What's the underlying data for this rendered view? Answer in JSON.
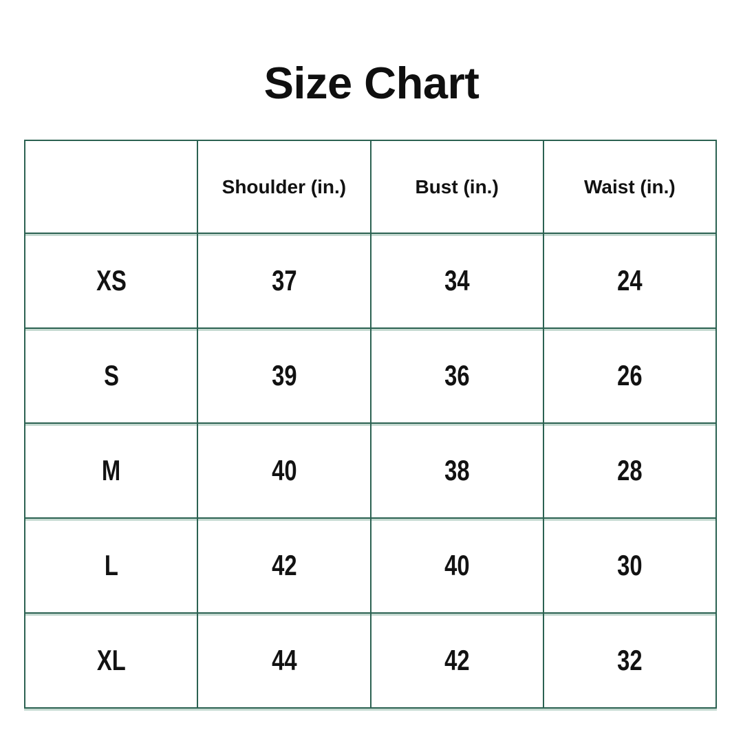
{
  "title": "Size Chart",
  "colors": {
    "background": "#ffffff",
    "text": "#121212",
    "table_border": "#2b6151",
    "table_border_shadow": "#c4d9d0"
  },
  "chart_data": {
    "type": "table",
    "title": "Size Chart",
    "columns": [
      "",
      "Shoulder (in.)",
      "Bust (in.)",
      "Waist (in.)"
    ],
    "rows": [
      [
        "XS",
        37,
        34,
        24
      ],
      [
        "S",
        39,
        36,
        26
      ],
      [
        "M",
        40,
        38,
        28
      ],
      [
        "L",
        42,
        40,
        30
      ],
      [
        "XL",
        44,
        42,
        32
      ]
    ],
    "layout_hints": {
      "columns_equal_width": true,
      "grid": "full-borders",
      "header_row": true,
      "first_column_is_size_label": true
    }
  }
}
